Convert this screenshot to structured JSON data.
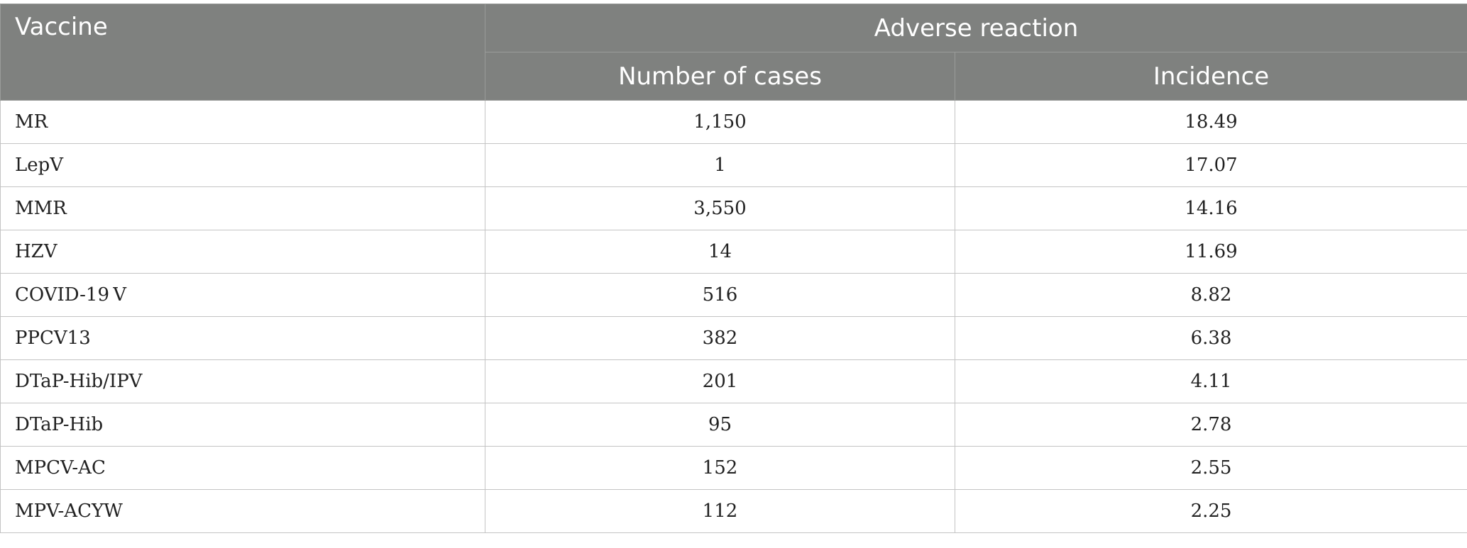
{
  "table": {
    "header": {
      "vaccine": "Vaccine",
      "group": "Adverse reaction",
      "cases": "Number of cases",
      "incidence": "Incidence"
    },
    "rows": [
      {
        "vaccine": "MR",
        "cases": "1,150",
        "incidence": "18.49"
      },
      {
        "vaccine": "LepV",
        "cases": "1",
        "incidence": "17.07"
      },
      {
        "vaccine": "MMR",
        "cases": "3,550",
        "incidence": "14.16"
      },
      {
        "vaccine": "HZV",
        "cases": "14",
        "incidence": "11.69"
      },
      {
        "vaccine": "COVID-19 V",
        "cases": "516",
        "incidence": "8.82"
      },
      {
        "vaccine": "PPCV13",
        "cases": "382",
        "incidence": "6.38"
      },
      {
        "vaccine": "DTaP-Hib/IPV",
        "cases": "201",
        "incidence": "4.11"
      },
      {
        "vaccine": "DTaP-Hib",
        "cases": "95",
        "incidence": "2.78"
      },
      {
        "vaccine": "MPCV-AC",
        "cases": "152",
        "incidence": "2.55"
      },
      {
        "vaccine": "MPV-ACYW",
        "cases": "112",
        "incidence": "2.25"
      }
    ]
  }
}
